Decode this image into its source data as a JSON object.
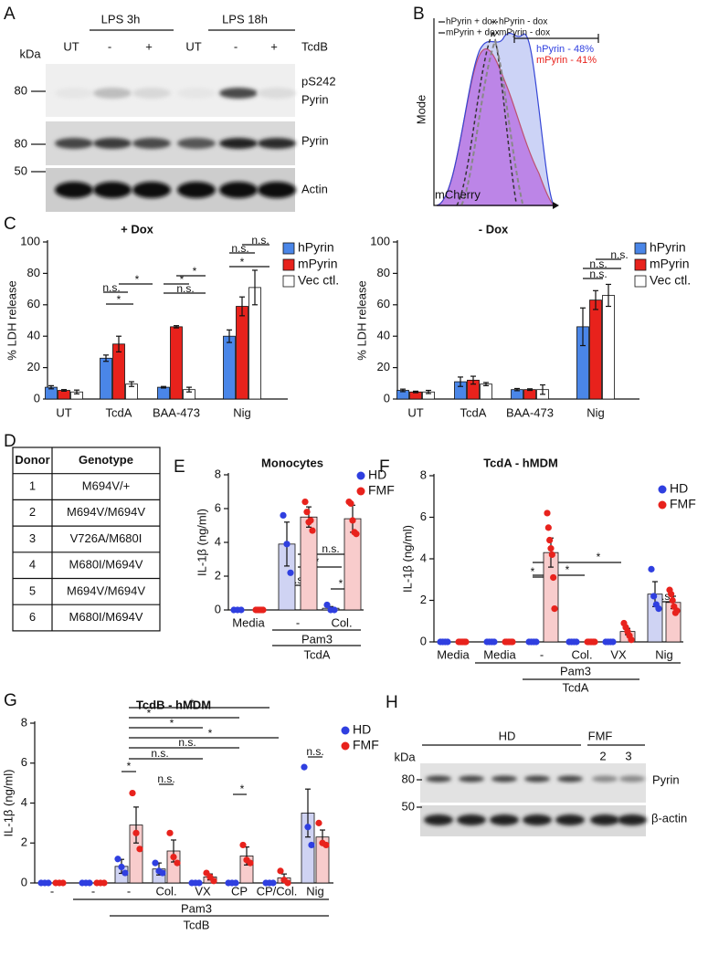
{
  "panel_labels": [
    "A",
    "B",
    "C",
    "D",
    "E",
    "F",
    "G",
    "H"
  ],
  "blot_a": {
    "treatments": [
      "LPS 3h",
      "LPS 18h"
    ],
    "kda": "kDa",
    "lanes": [
      "UT",
      "-",
      "+",
      "UT",
      "-",
      "+"
    ],
    "lane_row": "TcdB",
    "markers": [
      "80",
      "80",
      "50"
    ],
    "bands": [
      "pS242",
      "Pyrin",
      "Pyrin",
      "Actin"
    ]
  },
  "flow_b": {
    "legend": [
      "hPyrin + dox",
      "hPyrin - dox",
      "mPyrin + dox",
      "mPyrin - dox"
    ],
    "ylabel": "Mode",
    "xlabel": "mCherry",
    "gates": [
      "hPyrin  - 48%",
      "mPyrin - 41%"
    ]
  },
  "table_d": {
    "header": [
      "Donor",
      "Genotype"
    ],
    "rows": [
      [
        "1",
        "M694V/+"
      ],
      [
        "2",
        "M694V/M694V"
      ],
      [
        "3",
        "V726A/M680I"
      ],
      [
        "4",
        "M680I/M694V"
      ],
      [
        "5",
        "M694V/M694V"
      ],
      [
        "6",
        "M680I/M694V"
      ]
    ]
  },
  "blot_h": {
    "groups": [
      "HD",
      "FMF"
    ],
    "donors": [
      "2",
      "3"
    ],
    "kda": "kDa",
    "markers": [
      "80",
      "50"
    ],
    "bands": [
      "Pyrin",
      "β-actin"
    ]
  },
  "chart_data": [
    {
      "type": "bar",
      "title": "+ Dox",
      "ylabel": "% LDH release",
      "categories": [
        "UT",
        "TcdA",
        "BAA-473",
        "Nig"
      ],
      "series": [
        {
          "name": "hPyrin",
          "color": "#4a86e8",
          "values": [
            7.5,
            26,
            7.5,
            40
          ],
          "errors": [
            1,
            2,
            0.5,
            4
          ]
        },
        {
          "name": "mPyrin",
          "color": "#e8221c",
          "values": [
            5.5,
            35,
            46,
            59
          ],
          "errors": [
            0.5,
            5,
            0.7,
            6
          ]
        },
        {
          "name": "Vec ctl.",
          "color": "#ffffff",
          "values": [
            4.5,
            9.5,
            6,
            71
          ],
          "errors": [
            1.2,
            1.5,
            1.5,
            11
          ]
        }
      ],
      "ylim": [
        0,
        100
      ],
      "yticks": [
        0,
        20,
        40,
        60,
        80,
        100
      ],
      "annotations": [
        "n.s.",
        "*",
        "*",
        "*",
        "*",
        "n.s.",
        "n.s.",
        "n.s.",
        "*"
      ]
    },
    {
      "type": "bar",
      "title": "- Dox",
      "ylabel": "% LDH release",
      "categories": [
        "UT",
        "TcdA",
        "BAA-473",
        "Nig"
      ],
      "series": [
        {
          "name": "hPyrin",
          "color": "#4a86e8",
          "values": [
            5.5,
            11,
            6,
            46
          ],
          "errors": [
            0.8,
            3,
            0.7,
            12
          ]
        },
        {
          "name": "mPyrin",
          "color": "#e8221c",
          "values": [
            4.5,
            12,
            6,
            63
          ],
          "errors": [
            0.5,
            2.5,
            0.5,
            6
          ]
        },
        {
          "name": "Vec ctl.",
          "color": "#ffffff",
          "values": [
            4.5,
            9.5,
            6,
            66
          ],
          "errors": [
            1,
            1,
            3,
            7
          ]
        }
      ],
      "ylim": [
        0,
        100
      ],
      "yticks": [
        0,
        20,
        40,
        60,
        80,
        100
      ],
      "annotations": [
        "n.s.",
        "n.s.",
        "n.s."
      ]
    },
    {
      "type": "dotbar",
      "title": "Monocytes",
      "ylabel": "IL-1β (ng/ml)",
      "categories": [
        "Media",
        "-",
        "Col."
      ],
      "group_labels": [
        "Pam3",
        "TcdA"
      ],
      "series": [
        {
          "name": "HD",
          "color": "#2f3fe0",
          "fill": "#cfd3f3",
          "values": [
            0,
            3.9,
            0.1
          ],
          "errors": [
            0,
            1.3,
            0.1
          ],
          "points": [
            [
              0,
              0,
              0
            ],
            [
              5.6,
              3.9,
              2.2
            ],
            [
              0.3,
              0,
              0
            ]
          ]
        },
        {
          "name": "FMF",
          "color": "#e8221c",
          "fill": "#f8cccc",
          "values": [
            0,
            5.5,
            5.4
          ],
          "errors": [
            0,
            0.6,
            0.8
          ],
          "points": [
            [
              0,
              0,
              0,
              0,
              0
            ],
            [
              6.4,
              5.8,
              5.2,
              5.3,
              4.7
            ],
            [
              6.4,
              6.3,
              5.3,
              4.6,
              4.5
            ]
          ]
        }
      ],
      "ylim": [
        0,
        8
      ],
      "yticks": [
        0,
        2,
        4,
        6,
        8
      ],
      "annotations": [
        "n.s.",
        "*",
        "n.s.",
        "*"
      ]
    },
    {
      "type": "dotbar",
      "title": "TcdA - hMDM",
      "ylabel": "IL-1β (ng/ml)",
      "categories": [
        "Media",
        "Media",
        "-",
        "Col.",
        "VX",
        "Nig"
      ],
      "group_labels": [
        "Pam3",
        "TcdA"
      ],
      "series": [
        {
          "name": "HD",
          "color": "#2f3fe0",
          "fill": "#cfd3f3",
          "values": [
            0,
            0,
            0,
            0,
            0,
            2.3
          ],
          "errors": [
            0,
            0,
            0,
            0,
            0,
            0.6
          ],
          "points": [
            [
              0,
              0,
              0,
              0
            ],
            [
              0,
              0,
              0,
              0
            ],
            [
              0,
              0,
              0,
              0
            ],
            [
              0,
              0,
              0,
              0
            ],
            [
              0,
              0,
              0,
              0
            ],
            [
              3.5,
              2.2,
              1.8,
              1.6
            ]
          ]
        },
        {
          "name": "FMF",
          "color": "#e8221c",
          "fill": "#f8cccc",
          "values": [
            0,
            0,
            4.3,
            0,
            0.5,
            1.9
          ],
          "errors": [
            0,
            0,
            0.7,
            0,
            0.15,
            0.3
          ],
          "points": [
            [
              0,
              0,
              0,
              0,
              0,
              0
            ],
            [
              0,
              0,
              0,
              0,
              0,
              0
            ],
            [
              6.2,
              5.5,
              4.9,
              4.5,
              4.2,
              3.1,
              1.6
            ],
            [
              0,
              0,
              0,
              0,
              0,
              0
            ],
            [
              0.9,
              0.7,
              0.5,
              0.3,
              0.1
            ],
            [
              2.5,
              2.3,
              2.0,
              1.7,
              1.4,
              1.5
            ]
          ]
        }
      ],
      "ylim": [
        0,
        8
      ],
      "yticks": [
        0,
        2,
        4,
        6,
        8
      ],
      "annotations": [
        "*",
        "*",
        "*",
        "n.s."
      ]
    },
    {
      "type": "dotbar",
      "title": "TcdB - hMDM",
      "ylabel": "IL-1β (ng/ml)",
      "categories": [
        "-",
        "-",
        "-",
        "Col.",
        "VX",
        "CP",
        "CP/Col.",
        "Nig"
      ],
      "group_labels": [
        "Pam3",
        "TcdB"
      ],
      "series": [
        {
          "name": "HD",
          "color": "#2f3fe0",
          "fill": "#cfd3f3",
          "values": [
            0,
            0,
            0.83,
            0.7,
            0,
            0,
            0,
            3.5
          ],
          "errors": [
            0,
            0,
            0.35,
            0.3,
            0,
            0,
            0,
            1.2
          ],
          "points": [
            [
              0,
              0,
              0
            ],
            [
              0,
              0,
              0
            ],
            [
              1.2,
              0.8,
              0.5
            ],
            [
              1.0,
              0.6,
              0.5
            ],
            [
              0,
              0,
              0
            ],
            [
              0,
              0,
              0
            ],
            [
              0,
              0,
              0
            ],
            [
              5.8,
              2.8,
              1.9
            ]
          ]
        },
        {
          "name": "FMF",
          "color": "#e8221c",
          "fill": "#f8cccc",
          "values": [
            0,
            0,
            2.9,
            1.6,
            0.3,
            1.35,
            0.25,
            2.3
          ],
          "errors": [
            0,
            0,
            0.9,
            0.55,
            0.15,
            0.45,
            0.2,
            0.35
          ],
          "points": [
            [
              0,
              0,
              0
            ],
            [
              0,
              0,
              0
            ],
            [
              4.5,
              2.5,
              1.7
            ],
            [
              2.5,
              1.3,
              1.0
            ],
            [
              0.5,
              0.3,
              0.1
            ],
            [
              1.9,
              1.15,
              1.0
            ],
            [
              0.6,
              0.15,
              0.0
            ],
            [
              3.0,
              2.0,
              1.9
            ]
          ]
        }
      ],
      "ylim": [
        0,
        8
      ],
      "yticks": [
        0,
        2,
        4,
        6,
        8
      ],
      "annotations": [
        "*",
        "*",
        "*",
        "*",
        "n.s.",
        "n.s.",
        "*",
        "n.s.",
        "n.s.",
        "*"
      ]
    }
  ]
}
